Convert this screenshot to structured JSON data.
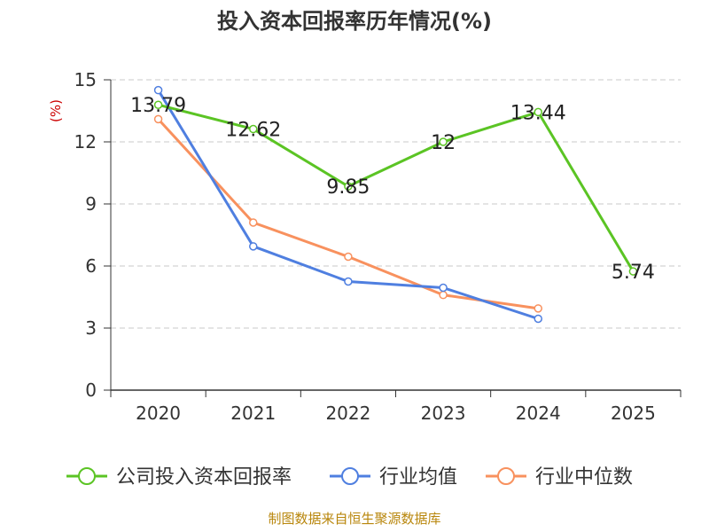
{
  "chart_data": {
    "type": "line",
    "title": "投入资本回报率历年情况(%)",
    "ylabel": "(%)",
    "xlabel": "",
    "categories": [
      "2020",
      "2021",
      "2022",
      "2023",
      "2024",
      "2025"
    ],
    "ylim": [
      0,
      15
    ],
    "yticks": [
      0,
      3,
      6,
      9,
      12,
      15
    ],
    "grid": true,
    "legend_position": "bottom",
    "series": [
      {
        "name": "公司投入资本回报率",
        "color": "#5bc424",
        "values": [
          13.79,
          12.62,
          9.85,
          12,
          13.44,
          5.74
        ],
        "labels": [
          "13.79",
          "12.62",
          "9.85",
          "12",
          "13.44",
          "5.74"
        ]
      },
      {
        "name": "行业均值",
        "color": "#4f7fe0",
        "values": [
          14.5,
          6.95,
          5.25,
          4.95,
          3.45,
          null
        ]
      },
      {
        "name": "行业中位数",
        "color": "#f8915e",
        "values": [
          13.1,
          8.1,
          6.45,
          4.6,
          3.95,
          null
        ]
      }
    ]
  },
  "source_text": "制图数据来自恒生聚源数据库"
}
